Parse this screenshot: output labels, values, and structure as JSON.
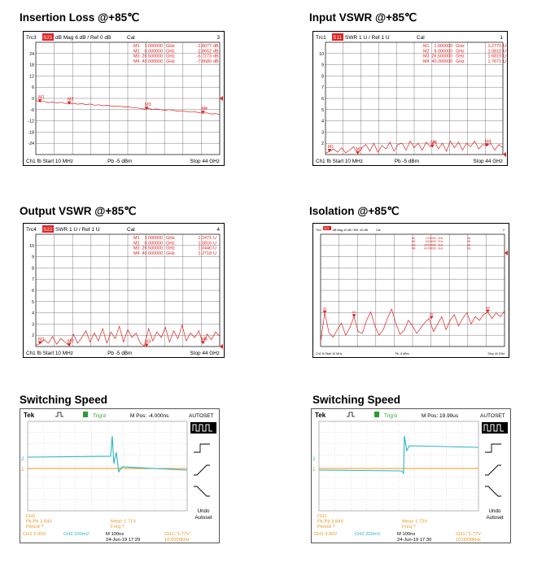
{
  "chart_data": [
    {
      "type": "line",
      "title": "Insertion Loss @+85℃",
      "header": {
        "trc": "Trc3",
        "param": "S21",
        "fmt": "dB Mag  6 dB /  Ref 0 dB",
        "cal": "Cal",
        "num": "3"
      },
      "footer": {
        "left": "Ch1  fb  Start  10 MHz",
        "mid": "Pb   -5 dBm",
        "right": "Stop  44 GHz"
      },
      "badge": "",
      "yticks": [
        "24",
        "18",
        "12",
        "6",
        "0",
        "-6",
        "-12",
        "-18",
        "-24"
      ],
      "ylim": [
        -30,
        30
      ],
      "xlim": [
        0.01,
        44
      ],
      "ref_value": 0,
      "markers": [
        {
          "name": "M1",
          "freq": "1.000000",
          "unit": "GHz",
          "val": "-1.8077",
          "vunit": "dB",
          "x": 1,
          "y": -1.81
        },
        {
          "name": "M2",
          "freq": "8.000000",
          "unit": "GHz",
          "val": "-2.8652",
          "vunit": "dB",
          "x": 8,
          "y": -2.87
        },
        {
          "name": "M3",
          "freq": "26.500000",
          "unit": "GHz",
          "val": "-5.7273",
          "vunit": "dB",
          "x": 26.5,
          "y": -5.73
        },
        {
          "name": "M4",
          "freq": "40.000000",
          "unit": "GHz",
          "val": "-7.8680",
          "vunit": "dB",
          "x": 40,
          "y": -7.87
        }
      ],
      "series": [
        {
          "x": [
            0.01,
            1,
            2,
            3,
            4,
            5,
            6,
            7,
            8,
            9,
            10,
            11,
            12,
            13,
            14,
            15,
            16,
            17,
            18,
            19,
            20,
            21,
            22,
            23,
            24,
            25,
            26,
            27,
            28,
            29,
            30,
            31,
            32,
            33,
            34,
            35,
            36,
            37,
            38,
            39,
            40,
            41,
            42,
            43,
            44
          ],
          "values": [
            -1.0,
            -1.8,
            -1.6,
            -2.2,
            -1.9,
            -2.5,
            -2.0,
            -2.7,
            -2.9,
            -2.6,
            -3.1,
            -2.8,
            -3.3,
            -3.0,
            -3.6,
            -3.4,
            -3.9,
            -3.7,
            -4.1,
            -4.3,
            -4.0,
            -4.6,
            -4.4,
            -4.9,
            -5.1,
            -5.3,
            -5.7,
            -5.4,
            -5.9,
            -5.6,
            -6.1,
            -6.3,
            -6.0,
            -6.5,
            -6.8,
            -6.6,
            -7.0,
            -7.3,
            -7.1,
            -7.6,
            -7.9,
            -7.7,
            -8.3,
            -8.1,
            -8.6
          ]
        }
      ]
    },
    {
      "type": "line",
      "title": "Input VSWR @+85℃",
      "header": {
        "trc": "Trc1",
        "param": "S11",
        "fmt": "SWR  1 U /  Ref 1 U",
        "cal": "Cal",
        "num": "1"
      },
      "footer": {
        "left": "Ch1  fb  Start  10 MHz",
        "mid": "Pb   -5 dBm",
        "right": "Stop  44 GHz"
      },
      "badge": "",
      "yticks": [
        "10",
        "9",
        "8",
        "7",
        "6",
        "5",
        "4",
        "3",
        "2"
      ],
      "ylim": [
        1,
        11
      ],
      "xlim": [
        0.01,
        44
      ],
      "ref_value": 1,
      "markers": [
        {
          "name": "M1",
          "freq": "1.000000",
          "unit": "GHz",
          "val": "1.2770",
          "vunit": "U",
          "x": 1,
          "y": 1.28
        },
        {
          "name": "M2",
          "freq": "8.000000",
          "unit": "GHz",
          "val": "1.0818",
          "vunit": "U",
          "x": 8,
          "y": 1.08
        },
        {
          "name": "M3",
          "freq": "26.500000",
          "unit": "GHz",
          "val": "1.6819",
          "vunit": "U",
          "x": 26.5,
          "y": 1.68
        },
        {
          "name": "M4",
          "freq": "40.000000",
          "unit": "GHz",
          "val": "1.7671",
          "vunit": "U",
          "x": 40,
          "y": 1.77
        }
      ],
      "series": [
        {
          "x": [
            0.01,
            1,
            2,
            3,
            4,
            5,
            6,
            7,
            8,
            9,
            10,
            11,
            12,
            13,
            14,
            15,
            16,
            17,
            18,
            19,
            20,
            21,
            22,
            23,
            24,
            25,
            26,
            27,
            28,
            29,
            30,
            31,
            32,
            33,
            34,
            35,
            36,
            37,
            38,
            39,
            40,
            41,
            42,
            43,
            44
          ],
          "values": [
            1.1,
            1.28,
            1.5,
            1.2,
            1.6,
            1.15,
            1.4,
            1.7,
            1.08,
            1.6,
            1.9,
            1.3,
            2.0,
            1.2,
            1.8,
            1.5,
            2.1,
            1.3,
            1.9,
            2.0,
            1.4,
            2.2,
            1.6,
            2.0,
            1.4,
            2.1,
            1.68,
            2.2,
            1.5,
            2.0,
            1.3,
            2.2,
            1.6,
            2.1,
            1.4,
            2.0,
            1.7,
            2.2,
            1.5,
            1.9,
            1.77,
            2.0,
            1.4,
            1.9,
            1.6
          ]
        }
      ]
    },
    {
      "type": "line",
      "title": "Output VSWR @+85℃",
      "header": {
        "trc": "Trc4",
        "param": "S22",
        "fmt": "SWR  1 U /  Ref 1 U",
        "cal": "Cal",
        "num": "4"
      },
      "footer": {
        "left": "Ch1  fb  Start  10 MHz",
        "mid": "Pb   -5 dBm",
        "right": "Stop  44 GHz"
      },
      "badge": "",
      "yticks": [
        "10",
        "9",
        "8",
        "7",
        "6",
        "5",
        "4",
        "3",
        "2"
      ],
      "ylim": [
        1,
        11
      ],
      "xlim": [
        0.01,
        44
      ],
      "ref_value": 1,
      "markers": [
        {
          "name": "M1",
          "freq": "1.000000",
          "unit": "GHz",
          "val": "1.2471",
          "vunit": "U",
          "x": 1,
          "y": 1.25
        },
        {
          "name": "M2",
          "freq": "8.000000",
          "unit": "GHz",
          "val": "1.0816",
          "vunit": "U",
          "x": 8,
          "y": 1.08
        },
        {
          "name": "M3",
          "freq": "26.500000",
          "unit": "GHz",
          "val": "1.0440",
          "vunit": "U",
          "x": 26.5,
          "y": 1.04
        },
        {
          "name": "M4",
          "freq": "40.000000",
          "unit": "GHz",
          "val": "1.2718",
          "vunit": "U",
          "x": 40,
          "y": 1.27
        }
      ],
      "series": [
        {
          "x": [
            0.01,
            1,
            2,
            3,
            4,
            5,
            6,
            7,
            8,
            9,
            10,
            11,
            12,
            13,
            14,
            15,
            16,
            17,
            18,
            19,
            20,
            21,
            22,
            23,
            24,
            25,
            26,
            27,
            28,
            29,
            30,
            31,
            32,
            33,
            34,
            35,
            36,
            37,
            38,
            39,
            40,
            41,
            42,
            43,
            44
          ],
          "values": [
            1.1,
            1.25,
            1.6,
            1.3,
            1.9,
            1.2,
            1.7,
            1.4,
            1.08,
            2.1,
            1.3,
            1.8,
            2.4,
            1.4,
            2.2,
            1.5,
            2.6,
            1.3,
            2.3,
            1.7,
            2.8,
            1.4,
            2.5,
            1.8,
            2.2,
            1.3,
            1.04,
            2.6,
            1.5,
            2.3,
            1.8,
            2.7,
            1.4,
            2.4,
            1.7,
            2.9,
            1.5,
            2.2,
            1.8,
            2.4,
            1.27,
            2.1,
            1.6,
            2.3,
            1.9
          ]
        }
      ]
    },
    {
      "type": "line",
      "title": "Isolation @+85℃",
      "header": {
        "trc": "Trc1",
        "param": "S21",
        "fmt": "dB Mag  10 dB /  Ref -40 dB",
        "cal": "Cal",
        "num": "2"
      },
      "footer": {
        "left": "Ch1  fb  Start  10 MHz",
        "mid": "Pb   -5 dBm",
        "right": "Stop  44 GHz"
      },
      "badge": "",
      "yticks": [],
      "ylim": [
        -140,
        -20
      ],
      "xlim": [
        0.01,
        44
      ],
      "ref_value": -40,
      "markers": [
        {
          "name": "M1",
          "freq": "1.000000",
          "unit": "GHz",
          "val": "",
          "vunit": "dB",
          "x": 1,
          "y": -104
        },
        {
          "name": "M2",
          "freq": "8.000000",
          "unit": "GHz",
          "val": "",
          "vunit": "dB",
          "x": 8,
          "y": -108
        },
        {
          "name": "M3",
          "freq": "26.500000",
          "unit": "GHz",
          "val": "",
          "vunit": "dB",
          "x": 26.5,
          "y": -110
        },
        {
          "name": "M4",
          "freq": "40.000000",
          "unit": "GHz",
          "val": "",
          "vunit": "dB",
          "x": 40,
          "y": -103
        }
      ],
      "series": [
        {
          "x": [
            0.01,
            1,
            2,
            3,
            4,
            5,
            6,
            7,
            8,
            9,
            10,
            11,
            12,
            13,
            14,
            15,
            16,
            17,
            18,
            19,
            20,
            21,
            22,
            23,
            24,
            25,
            26,
            27,
            28,
            29,
            30,
            31,
            32,
            33,
            34,
            35,
            36,
            37,
            38,
            39,
            40,
            41,
            42,
            43,
            44
          ],
          "values": [
            -135,
            -104,
            -125,
            -130,
            -122,
            -115,
            -128,
            -120,
            -108,
            -124,
            -126,
            -112,
            -103,
            -118,
            -128,
            -122,
            -110,
            -100,
            -115,
            -127,
            -123,
            -112,
            -118,
            -126,
            -120,
            -114,
            -110,
            -124,
            -116,
            -108,
            -122,
            -112,
            -106,
            -118,
            -110,
            -104,
            -116,
            -108,
            -112,
            -106,
            -103,
            -110,
            -104,
            -108,
            -102
          ]
        }
      ]
    },
    {
      "type": "line",
      "title": "Switching Speed",
      "scope": {
        "brand": "Tek",
        "trig": "Trig'd",
        "mpos": "M Pos: -4.000ns",
        "autoset": "AUTOSET",
        "menu": [
          "Undo",
          "Autoset"
        ],
        "ch1_lines": [
          "CH1",
          "Pk-Pk 3.84V",
          "Period ?"
        ],
        "meas_lines": [
          "Mean 1.71V",
          "Freq ?"
        ],
        "bottom": {
          "ch1": "CH1  2.00V",
          "ch2": "CH2  100mV",
          "time": "M 100ns",
          "date": "24-Jun-19 17:29",
          "trig": "CH1 ⁄ 1.77V",
          "freq": "10.0000kHz"
        }
      },
      "edge": "falling",
      "series": [
        {
          "name": "CH1",
          "color": "#e8951e"
        },
        {
          "name": "CH2",
          "color": "#2bb5c0"
        }
      ]
    },
    {
      "type": "line",
      "title": "Switching Speed",
      "scope": {
        "brand": "Tek",
        "trig": "Trig'd",
        "mpos": "M Pos: 19.99us",
        "autoset": "AUTOSET",
        "menu": [
          "Undo",
          "Autoset"
        ],
        "ch1_lines": [
          "CH1",
          "Pk-Pk 3.84V",
          "Period ?"
        ],
        "meas_lines": [
          "Mean 1.73V",
          "Freq ?"
        ],
        "bottom": {
          "ch1": "CH1  2.00V",
          "ch2": "CH2  200mV",
          "time": "M 100ns",
          "date": "24-Jun-19 17:30",
          "trig": "CH1 ⁄ 1.77V",
          "freq": "10.0000kHz"
        }
      },
      "edge": "rising",
      "series": [
        {
          "name": "CH1",
          "color": "#e8951e"
        },
        {
          "name": "CH2",
          "color": "#2bb5c0"
        }
      ]
    }
  ]
}
